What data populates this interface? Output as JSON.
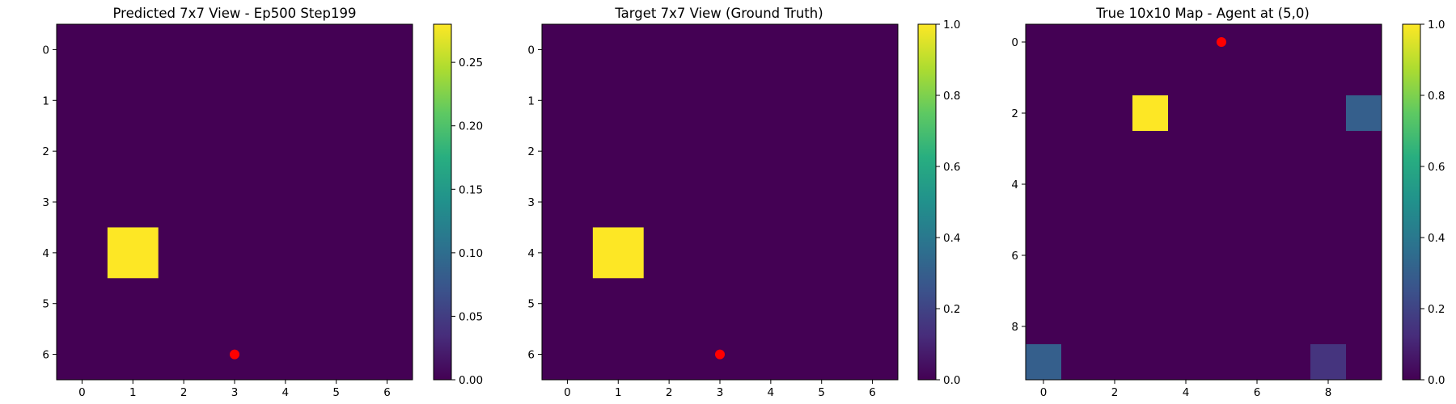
{
  "chart_data": [
    {
      "type": "heatmap",
      "title": "Predicted 7x7 View - Ep500 Step199",
      "rows": 7,
      "cols": 7,
      "xticks": [
        "0",
        "1",
        "2",
        "3",
        "4",
        "5",
        "6"
      ],
      "yticks": [
        "0",
        "1",
        "2",
        "3",
        "4",
        "5",
        "6"
      ],
      "colorbar": {
        "min": 0.0,
        "max": 0.28,
        "ticks": [
          "0.00",
          "0.05",
          "0.10",
          "0.15",
          "0.20",
          "0.25"
        ],
        "tick_values": [
          0,
          0.05,
          0.1,
          0.15,
          0.2,
          0.25
        ]
      },
      "cells": [
        {
          "row": 4,
          "col": 1,
          "value": 0.28
        }
      ],
      "agent": {
        "x": 3,
        "y": 6,
        "color": "#ff0000"
      }
    },
    {
      "type": "heatmap",
      "title": "Target 7x7 View (Ground Truth)",
      "rows": 7,
      "cols": 7,
      "xticks": [
        "0",
        "1",
        "2",
        "3",
        "4",
        "5",
        "6"
      ],
      "yticks": [
        "0",
        "1",
        "2",
        "3",
        "4",
        "5",
        "6"
      ],
      "colorbar": {
        "min": 0.0,
        "max": 1.0,
        "ticks": [
          "0.0",
          "0.2",
          "0.4",
          "0.6",
          "0.8",
          "1.0"
        ],
        "tick_values": [
          0,
          0.2,
          0.4,
          0.6,
          0.8,
          1.0
        ]
      },
      "cells": [
        {
          "row": 4,
          "col": 1,
          "value": 1.0
        }
      ],
      "agent": {
        "x": 3,
        "y": 6,
        "color": "#ff0000"
      }
    },
    {
      "type": "heatmap",
      "title": "True 10x10 Map - Agent at (5,0)",
      "rows": 10,
      "cols": 10,
      "xticks": [
        "0",
        "2",
        "4",
        "6",
        "8"
      ],
      "xtick_values": [
        0,
        2,
        4,
        6,
        8
      ],
      "yticks": [
        "0",
        "2",
        "4",
        "6",
        "8"
      ],
      "ytick_values": [
        0,
        2,
        4,
        6,
        8
      ],
      "colorbar": {
        "min": 0.0,
        "max": 1.0,
        "ticks": [
          "0.0",
          "0.2",
          "0.4",
          "0.6",
          "0.8",
          "1.0"
        ],
        "tick_values": [
          0,
          0.2,
          0.4,
          0.6,
          0.8,
          1.0
        ]
      },
      "cells": [
        {
          "row": 2,
          "col": 3,
          "value": 1.0
        },
        {
          "row": 2,
          "col": 9,
          "value": 0.3
        },
        {
          "row": 9,
          "col": 0,
          "value": 0.3
        },
        {
          "row": 9,
          "col": 8,
          "value": 0.15
        }
      ],
      "agent": {
        "x": 5,
        "y": 0,
        "color": "#ff0000"
      }
    }
  ],
  "colormap": "viridis"
}
